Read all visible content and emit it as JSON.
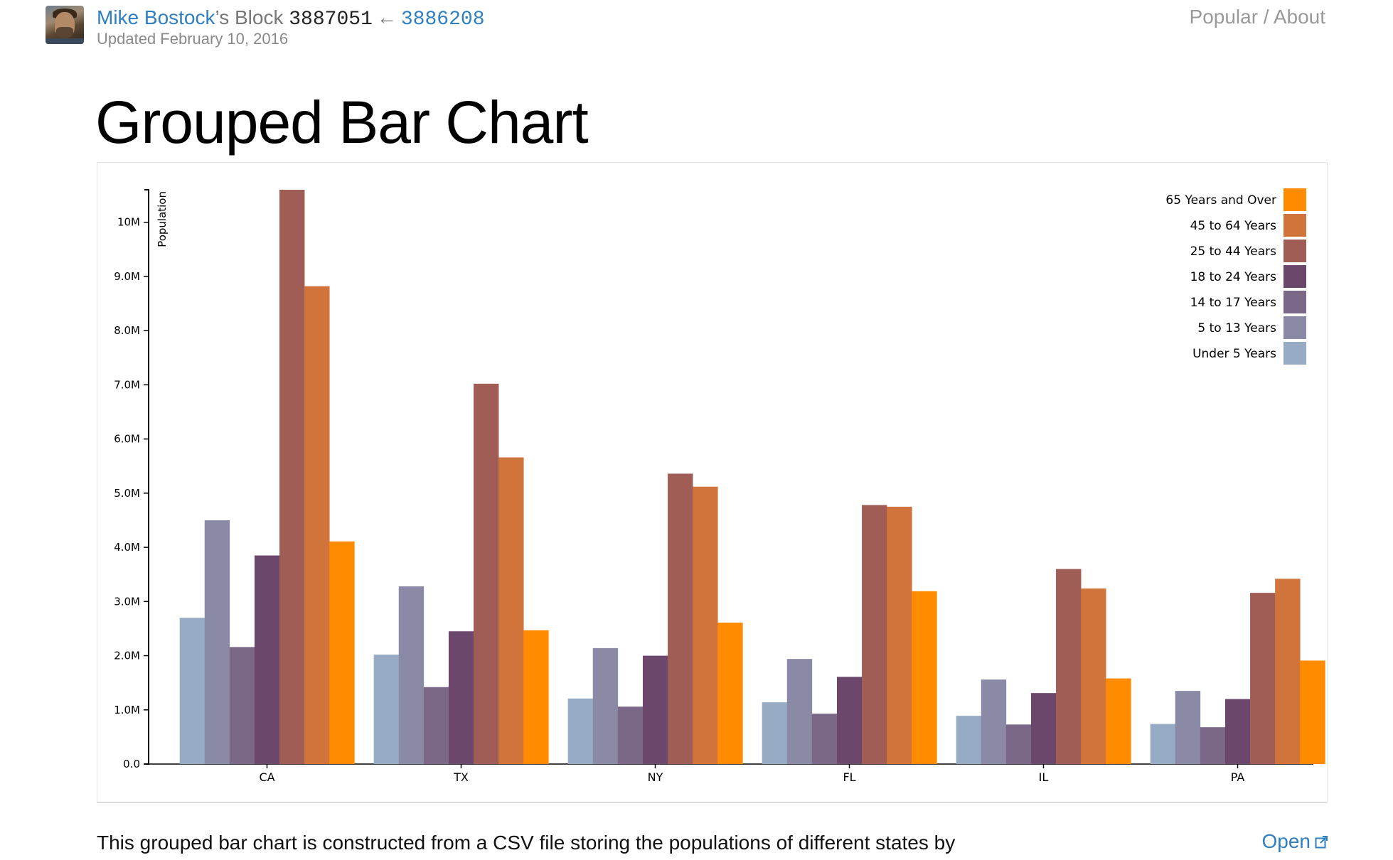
{
  "header": {
    "author": "Mike Bostock",
    "possessive": "’s Block",
    "block_id": "3887051",
    "arrow": "←",
    "parent_id": "3886208",
    "updated": "Updated February 10, 2016",
    "nav_popular": "Popular",
    "nav_sep": " / ",
    "nav_about": "About"
  },
  "page": {
    "title": "Grouped Bar Chart",
    "description": "This grouped bar chart is constructed from a CSV file storing the populations of different states by",
    "open_label": "Open"
  },
  "icons": {
    "avatar": "avatar-icon",
    "open": "external-link-icon"
  },
  "chart_data": {
    "type": "bar",
    "ylabel": "Population",
    "ylim": [
      0,
      10600000
    ],
    "yticks": [
      0,
      1000000,
      2000000,
      3000000,
      4000000,
      5000000,
      6000000,
      7000000,
      8000000,
      9000000,
      10000000
    ],
    "ytick_labels": [
      "0.0",
      "1.0M",
      "2.0M",
      "3.0M",
      "4.0M",
      "5.0M",
      "6.0M",
      "7.0M",
      "8.0M",
      "9.0M",
      "10M"
    ],
    "categories": [
      "CA",
      "TX",
      "NY",
      "FL",
      "IL",
      "PA"
    ],
    "legend_position": "top-right",
    "series": [
      {
        "name": "Under 5 Years",
        "color": "#98abc5",
        "values": [
          2700000,
          2020000,
          1210000,
          1140000,
          890000,
          740000
        ]
      },
      {
        "name": "5 to 13 Years",
        "color": "#8a89a6",
        "values": [
          4500000,
          3280000,
          2140000,
          1940000,
          1560000,
          1350000
        ]
      },
      {
        "name": "14 to 17 Years",
        "color": "#7b6888",
        "values": [
          2160000,
          1420000,
          1060000,
          930000,
          730000,
          680000
        ]
      },
      {
        "name": "18 to 24 Years",
        "color": "#6b486b",
        "values": [
          3850000,
          2450000,
          2000000,
          1610000,
          1310000,
          1200000
        ]
      },
      {
        "name": "25 to 44 Years",
        "color": "#a05d56",
        "values": [
          10600000,
          7020000,
          5360000,
          4780000,
          3600000,
          3160000
        ]
      },
      {
        "name": "45 to 64 Years",
        "color": "#d0743c",
        "values": [
          8820000,
          5660000,
          5120000,
          4750000,
          3240000,
          3420000
        ]
      },
      {
        "name": "65 Years and Over",
        "color": "#ff8c00",
        "values": [
          4110000,
          2470000,
          2610000,
          3190000,
          1580000,
          1910000
        ]
      }
    ]
  }
}
